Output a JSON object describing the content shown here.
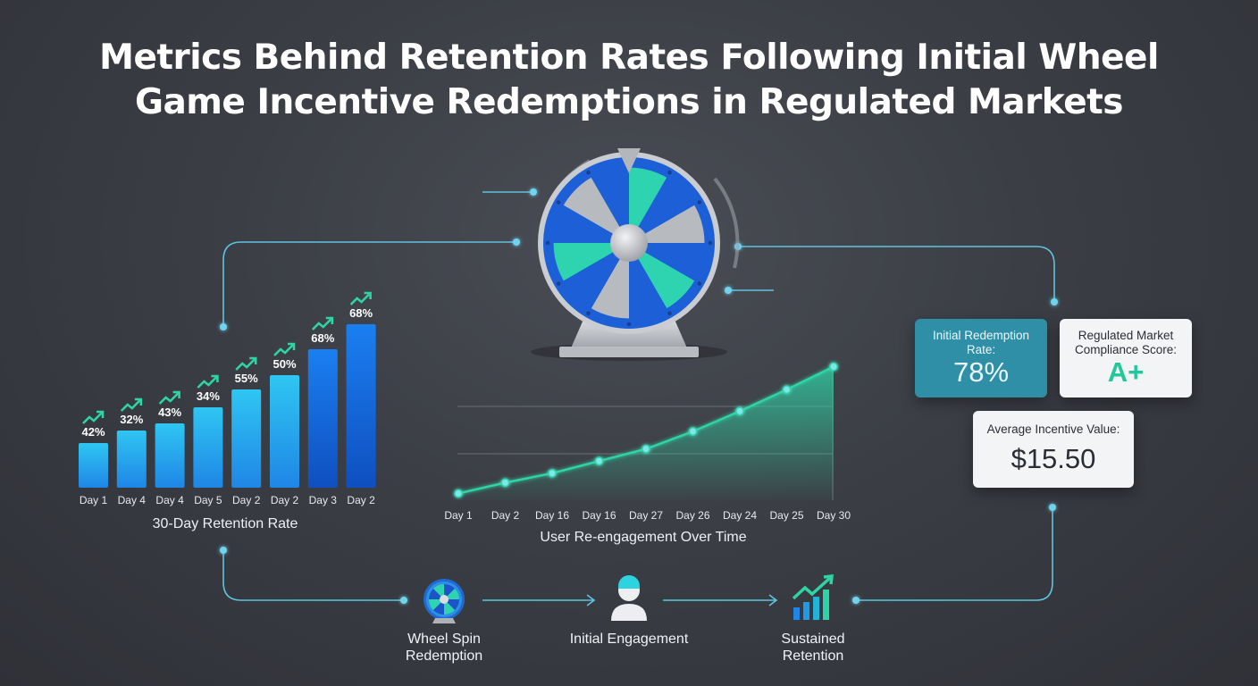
{
  "title_lines": [
    "Metrics Behind Retention Rates Following Initial Wheel",
    "Game Incentive Redemptions in Regulated Markets"
  ],
  "cards": {
    "initial_redemption": {
      "label_lines": [
        "Initial Redemption",
        "Rate:"
      ],
      "value": "78%"
    },
    "compliance": {
      "label_lines": [
        "Regulated Market",
        "Compliance Score:"
      ],
      "value": "A+"
    },
    "average_incentive": {
      "label": "Average Incentive Value:",
      "value": "$15.50"
    }
  },
  "flow": {
    "steps": [
      {
        "label_lines": [
          "Wheel Spin",
          "Redemption"
        ],
        "icon": "wheel-icon"
      },
      {
        "label_lines": [
          "Initial Engagement"
        ],
        "icon": "user-icon"
      },
      {
        "label_lines": [
          "Sustained",
          "Retention"
        ],
        "icon": "growth-chart-icon"
      }
    ]
  },
  "colors": {
    "accent_teal": "#2ed3a6",
    "accent_cyan": "#3ad0f0",
    "bar_blue": "#1d6fe0",
    "line_glow": "#47c7e8"
  },
  "chart_data": [
    {
      "type": "bar",
      "title": "30-Day Retention Rate",
      "categories": [
        "Day 1",
        "Day 4",
        "Day 4",
        "Day 5",
        "Day 2",
        "Day 2",
        "Day 3",
        "Day 2"
      ],
      "values": [
        42,
        32,
        43,
        34,
        55,
        50,
        68,
        68
      ],
      "value_labels": [
        "42%",
        "32%",
        "43%",
        "34%",
        "55%",
        "50%",
        "68%",
        "68%"
      ],
      "trend_markers": true,
      "ylim": [
        0,
        100
      ]
    },
    {
      "type": "area",
      "title": "User Re-engagement Over Time",
      "categories": [
        "Day 1",
        "Day 2",
        "Day 16",
        "Day 16",
        "Day 27",
        "Day 26",
        "Day 24",
        "Day 25",
        "Day 30"
      ],
      "values": [
        5,
        13,
        20,
        29,
        38,
        51,
        66,
        82,
        99
      ],
      "grid": true,
      "ylim": [
        0,
        100
      ]
    }
  ]
}
